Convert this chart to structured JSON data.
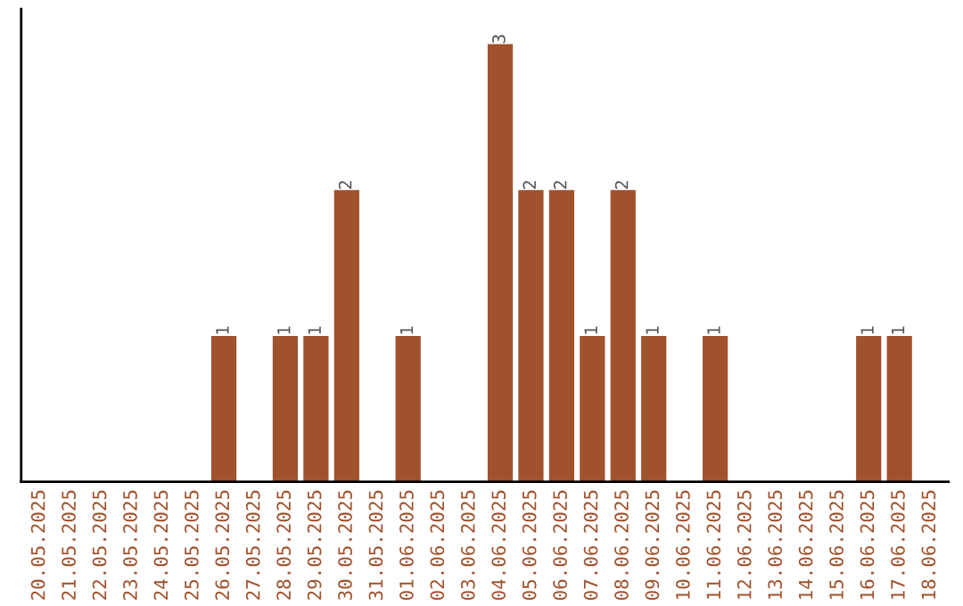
{
  "chart_data": {
    "type": "bar",
    "categories": [
      "20.05.2025",
      "21.05.2025",
      "22.05.2025",
      "23.05.2025",
      "24.05.2025",
      "25.05.2025",
      "26.05.2025",
      "27.05.2025",
      "28.05.2025",
      "29.05.2025",
      "30.05.2025",
      "31.05.2025",
      "01.06.2025",
      "02.06.2025",
      "03.06.2025",
      "04.06.2025",
      "05.06.2025",
      "06.06.2025",
      "07.06.2025",
      "08.06.2025",
      "09.06.2025",
      "10.06.2025",
      "11.06.2025",
      "12.06.2025",
      "13.06.2025",
      "14.06.2025",
      "15.06.2025",
      "16.06.2025",
      "17.06.2025",
      "18.06.2025"
    ],
    "values": [
      0,
      0,
      0,
      0,
      0,
      0,
      1,
      0,
      1,
      1,
      2,
      0,
      1,
      0,
      0,
      3,
      2,
      2,
      1,
      2,
      1,
      0,
      1,
      0,
      0,
      0,
      0,
      1,
      1,
      0
    ],
    "value_labels": [
      null,
      null,
      null,
      null,
      null,
      null,
      "1",
      null,
      "1",
      "1",
      "2",
      null,
      "1",
      null,
      null,
      "3",
      "2",
      "2",
      "1",
      "2",
      "1",
      null,
      "1",
      null,
      null,
      null,
      null,
      "1",
      "1",
      null
    ],
    "color": "#a0522d",
    "tick_labels": "x",
    "grid": false,
    "legend": false
  }
}
